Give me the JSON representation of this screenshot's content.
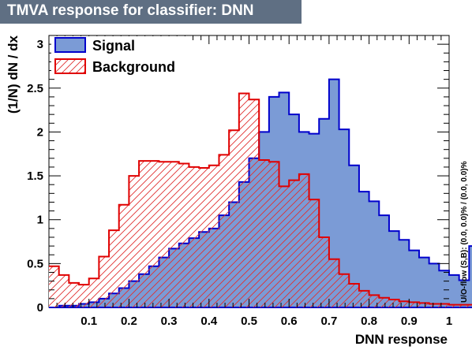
{
  "title": "TMVA response for classifier: DNN",
  "colors": {
    "title_bar": "#5f6f83",
    "signal_fill": "#7b9bd6",
    "signal_line": "#0000cc",
    "background_hatch": "#e03030",
    "background_line": "#e00000"
  },
  "chart_data": {
    "type": "histogram",
    "title": "TMVA response for classifier: DNN",
    "xlabel": "DNN response",
    "ylabel": "(1/N) dN / dx",
    "xlim": [
      0,
      1
    ],
    "ylim": [
      0,
      3.1
    ],
    "x_ticks": [
      "0.1",
      "0.2",
      "0.3",
      "0.4",
      "0.5",
      "0.6",
      "0.7",
      "0.8",
      "0.9",
      "1"
    ],
    "y_ticks": [
      "0",
      "0.5",
      "1",
      "1.5",
      "2",
      "2.5",
      "3"
    ],
    "bin_edges_start": 0,
    "bin_width": 0.025,
    "legend_position": "top-left",
    "overflow_note": "U/O-flow (S,B): (0.0, 0.0)% / (0.0, 0.0)%",
    "series": [
      {
        "name": "Signal",
        "style": "filled",
        "values": [
          0.0,
          0.02,
          0.02,
          0.04,
          0.06,
          0.1,
          0.16,
          0.22,
          0.3,
          0.38,
          0.47,
          0.57,
          0.67,
          0.73,
          0.79,
          0.86,
          0.9,
          1.05,
          1.2,
          1.43,
          1.7,
          2.0,
          2.4,
          2.45,
          2.2,
          2.0,
          1.98,
          2.15,
          2.6,
          2.03,
          1.62,
          1.32,
          1.21,
          1.05,
          0.87,
          0.77,
          0.65,
          0.57,
          0.5,
          0.42,
          0.37,
          0.31,
          0.7
        ]
      },
      {
        "name": "Background",
        "style": "hatched",
        "values": [
          0.47,
          0.37,
          0.28,
          0.26,
          0.33,
          0.58,
          0.88,
          1.17,
          1.5,
          1.67,
          1.67,
          1.66,
          1.66,
          1.64,
          1.6,
          1.59,
          1.62,
          1.74,
          2.02,
          2.44,
          2.37,
          1.68,
          1.66,
          1.38,
          1.45,
          1.52,
          1.23,
          0.8,
          0.55,
          0.38,
          0.27,
          0.19,
          0.14,
          0.11,
          0.09,
          0.07,
          0.06,
          0.05,
          0.04,
          0.04,
          0.03,
          0.03,
          0.03
        ]
      }
    ]
  }
}
